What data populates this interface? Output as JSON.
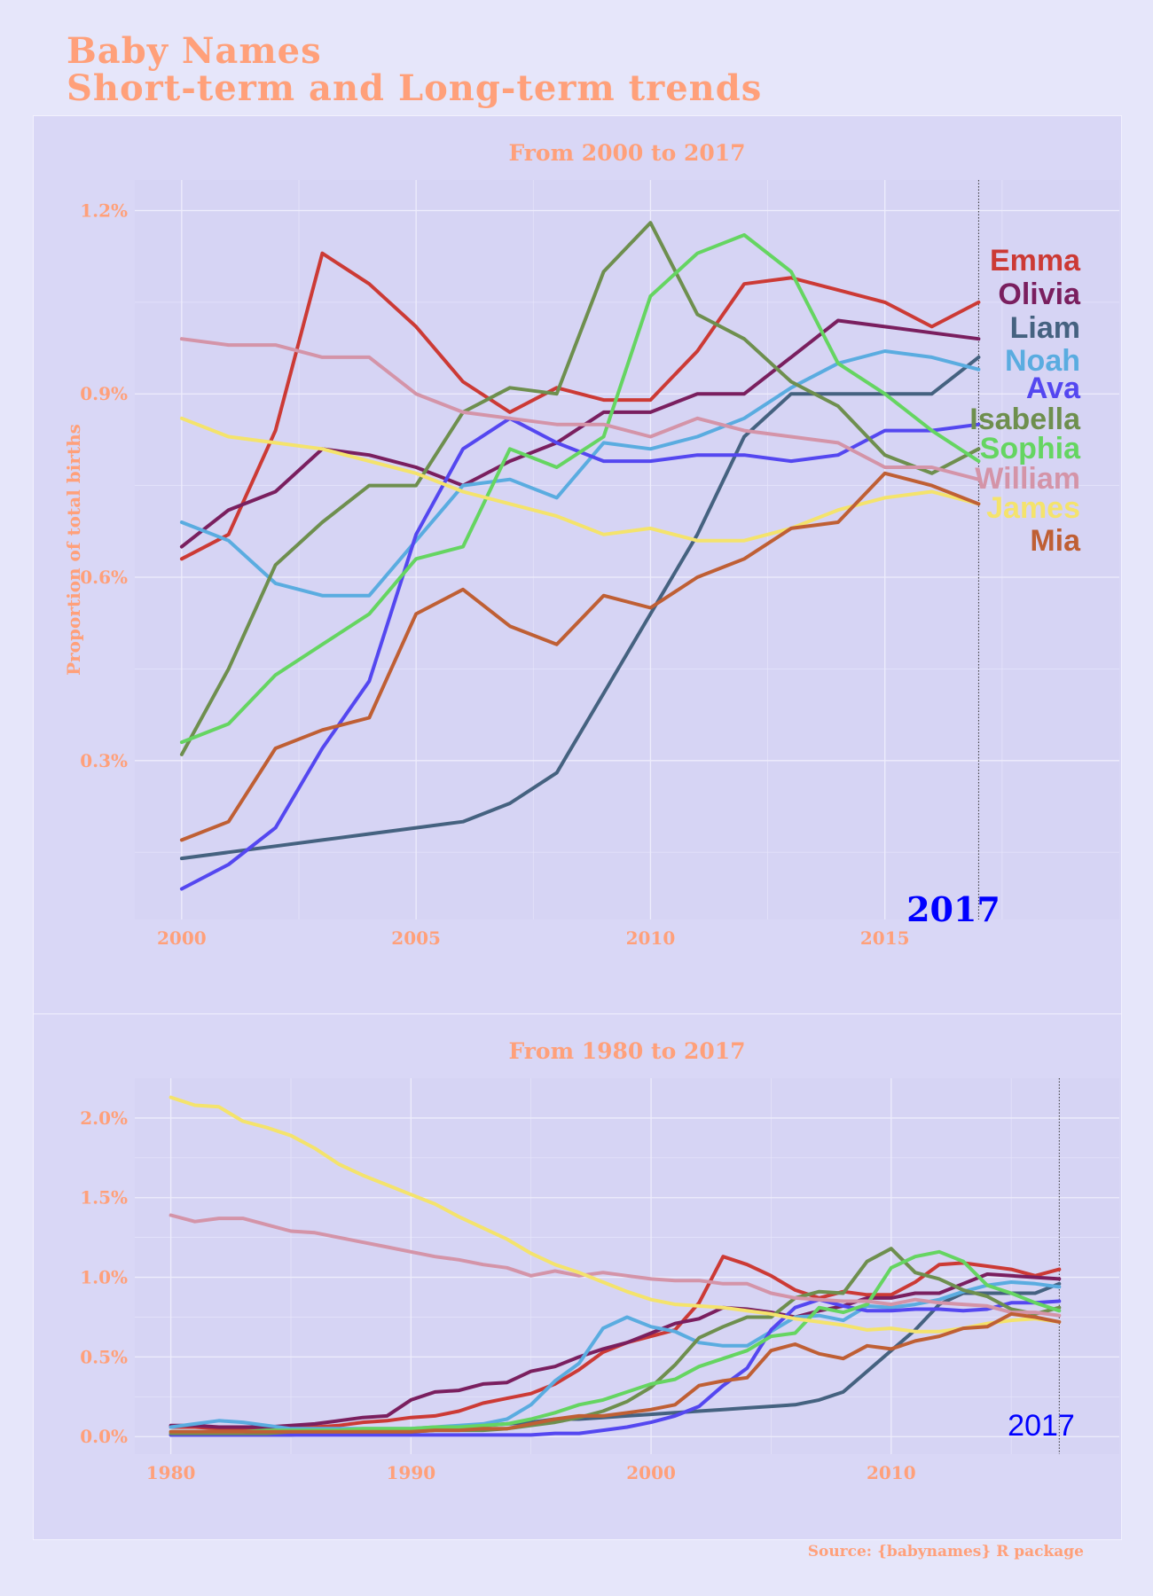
{
  "title_line1": "Baby Names",
  "title_line2": "Short-term and Long-term trends",
  "caption": "Source: {babynames} R package",
  "colors": {
    "background": "#e6e6fa",
    "panel": "#d9d7f6",
    "accent": "#ffa07a",
    "year_marker": "#0000ff"
  },
  "chart_data": [
    {
      "type": "line",
      "title": "From 2000 to 2017",
      "xlabel": "",
      "ylabel": "Proportion of total births",
      "x": [
        2000,
        2001,
        2002,
        2003,
        2004,
        2005,
        2006,
        2007,
        2008,
        2009,
        2010,
        2011,
        2012,
        2013,
        2014,
        2015,
        2016,
        2017
      ],
      "xticks": [
        "2000",
        "2005",
        "2010",
        "2015"
      ],
      "yticks": [
        "0.3%",
        "0.6%",
        "0.9%",
        "1.2%"
      ],
      "xlim": [
        1999,
        2020
      ],
      "ylim": [
        0.0004,
        0.0125
      ],
      "grid": true,
      "legend": "direct labels at right",
      "marker_year": "2017",
      "series": [
        {
          "name": "Emma",
          "color": "#cc3a35",
          "values": [
            0.0063,
            0.0067,
            0.0084,
            0.0113,
            0.0108,
            0.0101,
            0.0092,
            0.0087,
            0.0091,
            0.0089,
            0.0089,
            0.0097,
            0.0108,
            0.0109,
            0.0107,
            0.0105,
            0.0101,
            0.0105
          ]
        },
        {
          "name": "Olivia",
          "color": "#7a1f5f",
          "values": [
            0.0065,
            0.0071,
            0.0074,
            0.0081,
            0.008,
            0.0078,
            0.0075,
            0.0079,
            0.0082,
            0.0087,
            0.0087,
            0.009,
            0.009,
            0.0096,
            0.0102,
            0.0101,
            0.01,
            0.0099
          ]
        },
        {
          "name": "Liam",
          "color": "#456280",
          "values": [
            0.0014,
            0.0015,
            0.0016,
            0.0017,
            0.0018,
            0.0019,
            0.002,
            0.0023,
            0.0028,
            0.0041,
            0.0054,
            0.0067,
            0.0083,
            0.009,
            0.009,
            0.009,
            0.009,
            0.0096
          ]
        },
        {
          "name": "Noah",
          "color": "#5aace0",
          "values": [
            0.0069,
            0.0066,
            0.0059,
            0.0057,
            0.0057,
            0.0066,
            0.0075,
            0.0076,
            0.0073,
            0.0082,
            0.0081,
            0.0083,
            0.0086,
            0.0091,
            0.0095,
            0.0097,
            0.0096,
            0.0094
          ]
        },
        {
          "name": "Ava",
          "color": "#5447f0",
          "values": [
            0.0009,
            0.0013,
            0.0019,
            0.0032,
            0.0043,
            0.0067,
            0.0081,
            0.0086,
            0.0082,
            0.0079,
            0.0079,
            0.008,
            0.008,
            0.0079,
            0.008,
            0.0084,
            0.0084,
            0.0085
          ]
        },
        {
          "name": "Isabella",
          "color": "#6e8f4e",
          "values": [
            0.0031,
            0.0045,
            0.0062,
            0.0069,
            0.0075,
            0.0075,
            0.0087,
            0.0091,
            0.009,
            0.011,
            0.0118,
            0.0103,
            0.0099,
            0.0092,
            0.0088,
            0.008,
            0.0077,
            0.0081
          ]
        },
        {
          "name": "Sophia",
          "color": "#65d561",
          "values": [
            0.0033,
            0.0036,
            0.0044,
            0.0049,
            0.0054,
            0.0063,
            0.0065,
            0.0081,
            0.0078,
            0.0083,
            0.0106,
            0.0113,
            0.0116,
            0.011,
            0.0095,
            0.009,
            0.0084,
            0.0079
          ]
        },
        {
          "name": "William",
          "color": "#d494a8",
          "values": [
            0.0099,
            0.0098,
            0.0098,
            0.0096,
            0.0096,
            0.009,
            0.0087,
            0.0086,
            0.0085,
            0.0085,
            0.0083,
            0.0086,
            0.0084,
            0.0083,
            0.0082,
            0.0078,
            0.0078,
            0.0076
          ]
        },
        {
          "name": "James",
          "color": "#f4e36c",
          "values": [
            0.0086,
            0.0083,
            0.0082,
            0.0081,
            0.0079,
            0.0077,
            0.0074,
            0.0072,
            0.007,
            0.0067,
            0.0068,
            0.0066,
            0.0066,
            0.0068,
            0.0071,
            0.0073,
            0.0074,
            0.0072
          ]
        },
        {
          "name": "Mia",
          "color": "#bf5f34",
          "values": [
            0.0017,
            0.002,
            0.0032,
            0.0035,
            0.0037,
            0.0054,
            0.0058,
            0.0052,
            0.0049,
            0.0057,
            0.0055,
            0.006,
            0.0063,
            0.0068,
            0.0069,
            0.0077,
            0.0075,
            0.0072
          ]
        }
      ]
    },
    {
      "type": "line",
      "title": "From 1980 to 2017",
      "xlabel": "",
      "ylabel": "",
      "x": [
        1980,
        1981,
        1982,
        1983,
        1984,
        1985,
        1986,
        1987,
        1988,
        1989,
        1990,
        1991,
        1992,
        1993,
        1994,
        1995,
        1996,
        1997,
        1998,
        1999,
        2000,
        2001,
        2002,
        2003,
        2004,
        2005,
        2006,
        2007,
        2008,
        2009,
        2010,
        2011,
        2012,
        2013,
        2014,
        2015,
        2016,
        2017
      ],
      "xticks": [
        "1980",
        "1990",
        "2000",
        "2010"
      ],
      "yticks": [
        "0.0%",
        "0.5%",
        "1.0%",
        "1.5%",
        "2.0%"
      ],
      "xlim": [
        1978.5,
        2019.5
      ],
      "ylim": [
        -0.0011,
        0.0225
      ],
      "grid": true,
      "legend": "none",
      "marker_year": "2017",
      "series": [
        {
          "name": "Emma",
          "color": "#cc3a35",
          "values": [
            0.0006,
            0.0006,
            0.0005,
            0.0005,
            0.0005,
            0.0006,
            0.0006,
            0.0007,
            0.0009,
            0.001,
            0.0012,
            0.0013,
            0.0016,
            0.0021,
            0.0024,
            0.0027,
            0.0033,
            0.0042,
            0.0053,
            0.0059,
            0.0063,
            0.0067,
            0.0084,
            0.0113,
            0.0108,
            0.0101,
            0.0092,
            0.0087,
            0.0091,
            0.0089,
            0.0089,
            0.0097,
            0.0108,
            0.0109,
            0.0107,
            0.0105,
            0.0101,
            0.0105
          ]
        },
        {
          "name": "Olivia",
          "color": "#7a1f5f",
          "values": [
            0.0007,
            0.0007,
            0.0006,
            0.0006,
            0.0006,
            0.0007,
            0.0008,
            0.001,
            0.0012,
            0.0013,
            0.0023,
            0.0028,
            0.0029,
            0.0033,
            0.0034,
            0.0041,
            0.0044,
            0.005,
            0.0055,
            0.0059,
            0.0065,
            0.0071,
            0.0074,
            0.0081,
            0.008,
            0.0078,
            0.0075,
            0.0079,
            0.0082,
            0.0087,
            0.0087,
            0.009,
            0.009,
            0.0096,
            0.0102,
            0.0101,
            0.01,
            0.0099
          ]
        },
        {
          "name": "Liam",
          "color": "#456280",
          "values": [
            0.0001,
            0.0001,
            0.0001,
            0.0001,
            0.0001,
            0.0001,
            0.0002,
            0.0002,
            0.0003,
            0.0003,
            0.0004,
            0.0005,
            0.0006,
            0.0007,
            0.0008,
            0.0009,
            0.0011,
            0.0011,
            0.0012,
            0.0013,
            0.0014,
            0.0015,
            0.0016,
            0.0017,
            0.0018,
            0.0019,
            0.002,
            0.0023,
            0.0028,
            0.0041,
            0.0054,
            0.0067,
            0.0083,
            0.009,
            0.009,
            0.009,
            0.009,
            0.0096
          ]
        },
        {
          "name": "Noah",
          "color": "#5aace0",
          "values": [
            0.0006,
            0.0008,
            0.001,
            0.0009,
            0.0007,
            0.0005,
            0.0005,
            0.0005,
            0.0005,
            0.0005,
            0.0005,
            0.0006,
            0.0007,
            0.0008,
            0.0011,
            0.002,
            0.0035,
            0.0046,
            0.0068,
            0.0075,
            0.0069,
            0.0066,
            0.0059,
            0.0057,
            0.0057,
            0.0066,
            0.0075,
            0.0076,
            0.0073,
            0.0082,
            0.0081,
            0.0083,
            0.0086,
            0.0091,
            0.0095,
            0.0097,
            0.0096,
            0.0094
          ]
        },
        {
          "name": "Ava",
          "color": "#5447f0",
          "values": [
            0.0001,
            0.0001,
            0.0001,
            0.0001,
            0.0001,
            0.0001,
            0.0001,
            0.0001,
            0.0001,
            0.0001,
            0.0001,
            0.0001,
            0.0001,
            0.0001,
            0.0001,
            0.0001,
            0.0002,
            0.0002,
            0.0004,
            0.0006,
            0.0009,
            0.0013,
            0.0019,
            0.0032,
            0.0043,
            0.0067,
            0.0081,
            0.0086,
            0.0082,
            0.0079,
            0.0079,
            0.008,
            0.008,
            0.0079,
            0.008,
            0.0084,
            0.0084,
            0.0085
          ]
        },
        {
          "name": "Isabella",
          "color": "#6e8f4e",
          "values": [
            0.0002,
            0.0002,
            0.0002,
            0.0002,
            0.0002,
            0.0003,
            0.0003,
            0.0003,
            0.0003,
            0.0003,
            0.0003,
            0.0004,
            0.0004,
            0.0004,
            0.0005,
            0.0007,
            0.0009,
            0.0012,
            0.0016,
            0.0022,
            0.0031,
            0.0045,
            0.0062,
            0.0069,
            0.0075,
            0.0075,
            0.0087,
            0.0091,
            0.009,
            0.011,
            0.0118,
            0.0103,
            0.0099,
            0.0092,
            0.0088,
            0.008,
            0.0077,
            0.0081
          ]
        },
        {
          "name": "Sophia",
          "color": "#65d561",
          "values": [
            0.0003,
            0.0003,
            0.0003,
            0.0003,
            0.0004,
            0.0004,
            0.0004,
            0.0004,
            0.0005,
            0.0005,
            0.0005,
            0.0006,
            0.0006,
            0.0007,
            0.0008,
            0.0011,
            0.0015,
            0.002,
            0.0023,
            0.0028,
            0.0033,
            0.0036,
            0.0044,
            0.0049,
            0.0054,
            0.0063,
            0.0065,
            0.0081,
            0.0078,
            0.0083,
            0.0106,
            0.0113,
            0.0116,
            0.011,
            0.0095,
            0.009,
            0.0084,
            0.0079
          ]
        },
        {
          "name": "William",
          "color": "#d494a8",
          "values": [
            0.0139,
            0.0135,
            0.0137,
            0.0137,
            0.0133,
            0.0129,
            0.0128,
            0.0125,
            0.0122,
            0.0119,
            0.0116,
            0.0113,
            0.0111,
            0.0108,
            0.0106,
            0.0101,
            0.0104,
            0.0101,
            0.0103,
            0.0101,
            0.0099,
            0.0098,
            0.0098,
            0.0096,
            0.0096,
            0.009,
            0.0087,
            0.0086,
            0.0085,
            0.0085,
            0.0083,
            0.0086,
            0.0084,
            0.0083,
            0.0082,
            0.0078,
            0.0078,
            0.0076
          ]
        },
        {
          "name": "James",
          "color": "#f4e36c",
          "values": [
            0.0213,
            0.0208,
            0.0207,
            0.0198,
            0.0194,
            0.0189,
            0.0181,
            0.0171,
            0.0164,
            0.0158,
            0.0152,
            0.0146,
            0.0138,
            0.0131,
            0.0124,
            0.0115,
            0.0108,
            0.0103,
            0.0097,
            0.0091,
            0.0086,
            0.0083,
            0.0082,
            0.0081,
            0.0079,
            0.0077,
            0.0074,
            0.0072,
            0.007,
            0.0067,
            0.0068,
            0.0066,
            0.0066,
            0.0068,
            0.0071,
            0.0073,
            0.0074,
            0.0072
          ]
        },
        {
          "name": "Mia",
          "color": "#bf5f34",
          "values": [
            0.0003,
            0.0003,
            0.0003,
            0.0003,
            0.0003,
            0.0003,
            0.0003,
            0.0003,
            0.0003,
            0.0003,
            0.0003,
            0.0004,
            0.0004,
            0.0005,
            0.0005,
            0.0008,
            0.0011,
            0.0013,
            0.0013,
            0.0015,
            0.0017,
            0.002,
            0.0032,
            0.0035,
            0.0037,
            0.0054,
            0.0058,
            0.0052,
            0.0049,
            0.0057,
            0.0055,
            0.006,
            0.0063,
            0.0068,
            0.0069,
            0.0077,
            0.0075,
            0.0072
          ]
        }
      ]
    }
  ]
}
